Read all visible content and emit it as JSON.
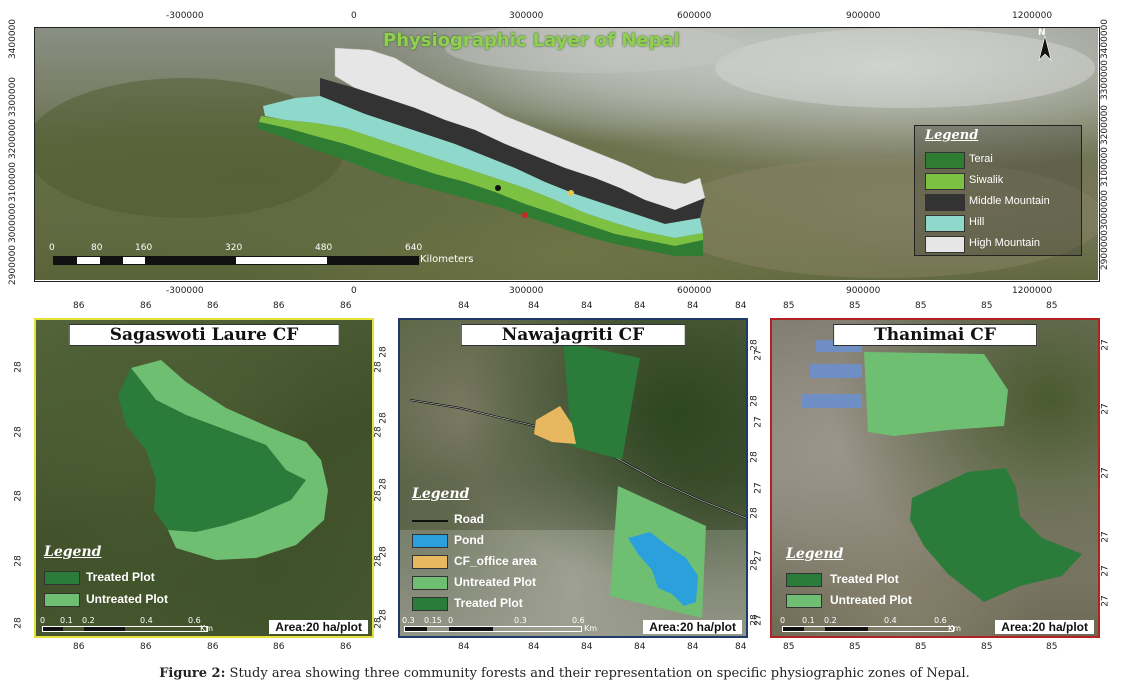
{
  "main_map": {
    "title": "Physiographic Layer of Nepal",
    "top_ticks": [
      "-300000",
      "0",
      "300000",
      "600000",
      "900000",
      "1200000"
    ],
    "bottom_ticks": [
      "-300000",
      "0",
      "300000",
      "600000",
      "900000",
      "1200000"
    ],
    "left_ticks": [
      "3400000",
      "3300000",
      "3200000",
      "3100000",
      "3000000",
      "2900000"
    ],
    "right_ticks": [
      "3400000",
      "3300000",
      "3200000",
      "3100000",
      "3000000",
      "2900000"
    ],
    "north_label": "N",
    "scale_labels": [
      "0",
      "80",
      "160",
      "320",
      "480",
      "640"
    ],
    "scale_unit": "Kilometers",
    "legend": {
      "title": "Legend",
      "items": [
        {
          "label": "Terai",
          "color": "#2e7d32"
        },
        {
          "label": "Siwalik",
          "color": "#7dc142"
        },
        {
          "label": "Middle Mountain",
          "color": "#333333"
        },
        {
          "label": "Hill",
          "color": "#8fd8cc"
        },
        {
          "label": "High Mountain",
          "color": "#e6e6e6"
        }
      ]
    }
  },
  "panel1": {
    "title": "Sagaswoti Laure CF",
    "top_ticks": [
      "86",
      "86",
      "86",
      "86",
      "86"
    ],
    "bottom_ticks": [
      "86",
      "86",
      "86",
      "86",
      "86"
    ],
    "left_ticks": [
      "28",
      "28",
      "28",
      "28",
      "28"
    ],
    "right_ticks": [
      "28",
      "28",
      "28",
      "28",
      "28"
    ],
    "legend_title": "Legend",
    "legend_items": [
      {
        "label": "Treated Plot",
        "color": "#2b7b3a"
      },
      {
        "label": "Untreated Plot",
        "color": "#6fbf73"
      }
    ],
    "scale_labels": [
      "0",
      "0.1",
      "0.2",
      "0.4",
      "0.6"
    ],
    "scale_unit": "Km",
    "area": "Area:20 ha/plot",
    "border_color": "#e6e03a"
  },
  "panel2": {
    "title": "Nawajagriti CF",
    "top_ticks": [
      "84",
      "84",
      "84",
      "84",
      "84",
      "84"
    ],
    "bottom_ticks": [
      "84",
      "84",
      "84",
      "84",
      "84",
      "84"
    ],
    "left_ticks": [
      "28",
      "28",
      "28",
      "28",
      "28"
    ],
    "right_ticks": [
      "28",
      "28",
      "28",
      "28",
      "28",
      "28"
    ],
    "legend_title": "Legend",
    "legend_items": [
      {
        "label": "Road",
        "color": "#111111"
      },
      {
        "label": "Pond",
        "color": "#2aa0dc"
      },
      {
        "label": "CF_office area",
        "color": "#e8b860"
      },
      {
        "label": "Untreated Plot",
        "color": "#6fbf73"
      },
      {
        "label": "Treated Plot",
        "color": "#2b7b3a"
      }
    ],
    "scale_labels": [
      "0.3",
      "0.15",
      "0",
      "0.3",
      "0.6"
    ],
    "scale_unit": "Km",
    "area": "Area:20 ha/plot",
    "border_color": "#1f3a6b"
  },
  "panel3": {
    "title": "Thanimai CF",
    "top_ticks": [
      "85",
      "85",
      "85",
      "85",
      "85"
    ],
    "bottom_ticks": [
      "85",
      "85",
      "85",
      "85",
      "85"
    ],
    "left_ticks": [
      "27",
      "27",
      "27",
      "27",
      "27"
    ],
    "right_ticks": [
      "27",
      "27",
      "27",
      "27",
      "27",
      "27"
    ],
    "legend_title": "Legend",
    "legend_items": [
      {
        "label": "Treated Plot",
        "color": "#2b7b3a"
      },
      {
        "label": "Untreated Plot",
        "color": "#6fbf73"
      }
    ],
    "scale_labels": [
      "0",
      "0.1",
      "0.2",
      "0.4",
      "0.6"
    ],
    "scale_unit": "Km",
    "area": "Area:20 ha/plot",
    "border_color": "#b22222"
  },
  "caption": {
    "label": "Figure 2:",
    "text": " Study area showing three community forests and their representation on specific physiographic zones of Nepal."
  }
}
